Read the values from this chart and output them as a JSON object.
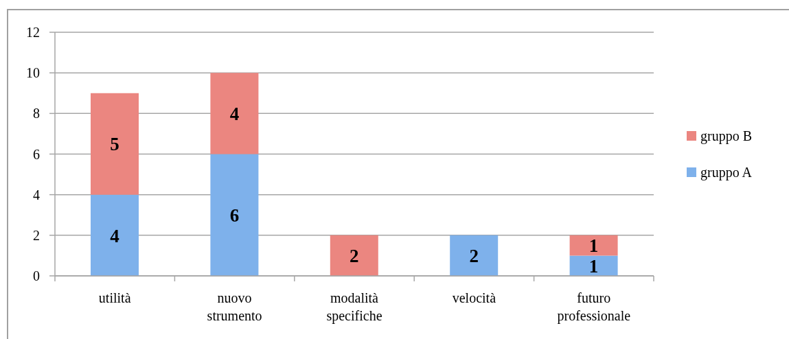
{
  "chart_data": {
    "type": "bar",
    "categories": [
      "utilità",
      "nuovo strumento",
      "modalità specifiche",
      "velocità",
      "futuro professionale"
    ],
    "series": [
      {
        "name": "gruppo A",
        "color": "#7eb1eb",
        "values": [
          4,
          6,
          null,
          2,
          1
        ]
      },
      {
        "name": "gruppo B",
        "color": "#eb8680",
        "values": [
          5,
          4,
          2,
          null,
          1
        ]
      }
    ],
    "stacked": true,
    "ylim": [
      0,
      12
    ],
    "yticks": [
      0,
      2,
      4,
      6,
      8,
      10,
      12
    ],
    "grid": "y",
    "legend": "right",
    "data_labels": true
  }
}
